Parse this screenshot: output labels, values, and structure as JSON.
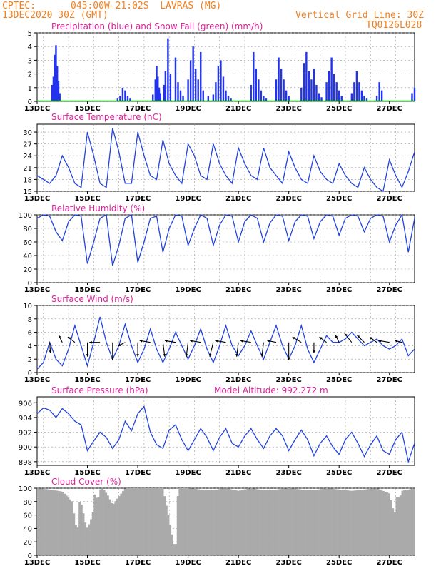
{
  "header": {
    "source": "CPTEC:",
    "location": "045:00W-21:02S  LAVRAS (MG)",
    "run": "13DEC2020 30Z (GMT)",
    "grid_note": "Vertical Grid Line: 30Z",
    "code": "TQ0126L028"
  },
  "colors": {
    "header": "#f08020",
    "title": "#e0209a",
    "line": "#2244dd",
    "precip": "#2233ee",
    "snow": "#00aa00",
    "cloud": "#aaaaaa",
    "wind": "#000000"
  },
  "date_labels": [
    "13DEC",
    "15DEC",
    "17DEC",
    "19DEC",
    "21DEC",
    "23DEC",
    "25DEC",
    "27DEC"
  ],
  "chart_data": [
    {
      "id": "precip",
      "type": "bar",
      "title": "Precipitation (blue) and Snow Fall (green) (mm/h)",
      "ylim": [
        0,
        5
      ],
      "yticks": [
        0,
        1,
        2,
        3,
        4,
        5
      ],
      "x_start": 0,
      "x_end": 15,
      "x_unit": "days since 13DEC2020 00Z (approx.)",
      "series": [
        {
          "name": "Precipitation",
          "x": [
            0.6,
            0.65,
            0.7,
            0.75,
            0.8,
            0.85,
            0.9,
            3.2,
            3.3,
            3.4,
            3.5,
            3.6,
            3.7,
            4.6,
            4.7,
            4.75,
            4.8,
            4.85,
            4.9,
            5.05,
            5.1,
            5.2,
            5.3,
            5.5,
            5.6,
            5.7,
            5.8,
            6.0,
            6.1,
            6.2,
            6.3,
            6.4,
            6.5,
            6.6,
            6.8,
            7.0,
            7.1,
            7.2,
            7.3,
            7.4,
            7.5,
            7.6,
            7.7,
            8.5,
            8.6,
            8.7,
            8.8,
            8.9,
            9.0,
            9.1,
            9.5,
            9.6,
            9.7,
            9.8,
            9.9,
            10.0,
            10.5,
            10.6,
            10.7,
            10.8,
            10.9,
            11.0,
            11.1,
            11.2,
            11.3,
            11.5,
            11.6,
            11.7,
            11.8,
            11.9,
            12.0,
            12.1,
            12.5,
            12.6,
            12.7,
            12.8,
            12.9,
            13.0,
            13.1,
            13.5,
            13.6,
            13.7,
            14.9,
            15.0
          ],
          "values": [
            1.2,
            1.8,
            3.4,
            4.1,
            2.6,
            1.5,
            0.6,
            0.2,
            0.4,
            1.0,
            0.8,
            0.4,
            0.2,
            0.5,
            1.6,
            2.6,
            1.8,
            1.0,
            0.6,
            1.2,
            2.2,
            4.6,
            2.0,
            3.2,
            1.4,
            0.8,
            0.4,
            1.6,
            3.0,
            4.0,
            2.4,
            1.6,
            3.6,
            0.8,
            0.4,
            0.5,
            1.4,
            2.6,
            3.0,
            1.8,
            0.8,
            0.4,
            0.2,
            1.2,
            3.6,
            2.4,
            1.6,
            0.8,
            0.4,
            0.2,
            1.6,
            3.2,
            2.4,
            1.6,
            0.8,
            0.4,
            1.0,
            2.8,
            3.6,
            2.2,
            1.6,
            2.4,
            1.2,
            0.6,
            0.3,
            1.4,
            2.2,
            3.2,
            2.0,
            1.4,
            0.8,
            0.4,
            0.6,
            1.4,
            2.2,
            1.4,
            0.8,
            0.4,
            0.2,
            0.4,
            1.4,
            0.8,
            0.6,
            1.0
          ]
        },
        {
          "name": "Snow Fall",
          "x": [],
          "values": []
        }
      ]
    },
    {
      "id": "temp",
      "type": "line",
      "title": "Surface Temperature (nC)",
      "ylim": [
        15,
        32
      ],
      "yticks": [
        15,
        18,
        21,
        24,
        27,
        30
      ],
      "x_start": 0,
      "x_end": 15,
      "series": [
        {
          "x": [
            0,
            0.25,
            0.5,
            0.75,
            1.0,
            1.25,
            1.5,
            1.75,
            2.0,
            2.25,
            2.5,
            2.75,
            3.0,
            3.25,
            3.5,
            3.75,
            4.0,
            4.25,
            4.5,
            4.75,
            5.0,
            5.25,
            5.5,
            5.75,
            6.0,
            6.25,
            6.5,
            6.75,
            7.0,
            7.25,
            7.5,
            7.75,
            8.0,
            8.25,
            8.5,
            8.75,
            9.0,
            9.25,
            9.5,
            9.75,
            10.0,
            10.25,
            10.5,
            10.75,
            11.0,
            11.25,
            11.5,
            11.75,
            12.0,
            12.25,
            12.5,
            12.75,
            13.0,
            13.25,
            13.5,
            13.75,
            14.0,
            14.25,
            14.5,
            14.75,
            15.0
          ],
          "values": [
            19,
            18,
            17,
            19,
            24,
            21,
            17,
            16,
            30,
            24,
            17,
            16,
            31,
            25,
            17,
            17,
            30,
            24,
            19,
            18,
            28,
            22,
            19,
            17,
            27,
            24,
            19,
            18,
            27,
            22,
            19,
            17,
            26,
            22,
            19,
            18,
            26,
            21,
            19,
            17,
            25,
            21,
            18,
            17,
            24,
            20,
            18,
            17,
            22,
            19,
            17,
            16,
            21,
            18,
            16,
            15,
            23,
            19,
            16,
            20,
            25
          ]
        }
      ]
    },
    {
      "id": "rh",
      "type": "line",
      "title": "Relative Humidity (%)",
      "ylim": [
        0,
        100
      ],
      "yticks": [
        0,
        20,
        40,
        60,
        80,
        100
      ],
      "x_start": 0,
      "x_end": 15,
      "series": [
        {
          "x": [
            0,
            0.25,
            0.5,
            0.75,
            1.0,
            1.25,
            1.5,
            1.75,
            2.0,
            2.25,
            2.5,
            2.75,
            3.0,
            3.25,
            3.5,
            3.75,
            4.0,
            4.25,
            4.5,
            4.75,
            5.0,
            5.25,
            5.5,
            5.75,
            6.0,
            6.25,
            6.5,
            6.75,
            7.0,
            7.25,
            7.5,
            7.75,
            8.0,
            8.25,
            8.5,
            8.75,
            9.0,
            9.25,
            9.5,
            9.75,
            10.0,
            10.25,
            10.5,
            10.75,
            11.0,
            11.25,
            11.5,
            11.75,
            12.0,
            12.25,
            12.5,
            12.75,
            13.0,
            13.25,
            13.5,
            13.75,
            14.0,
            14.25,
            14.5,
            14.75,
            15.0
          ],
          "values": [
            95,
            100,
            98,
            75,
            62,
            90,
            100,
            98,
            28,
            60,
            95,
            100,
            25,
            55,
            95,
            100,
            30,
            60,
            95,
            98,
            45,
            80,
            100,
            98,
            55,
            80,
            100,
            95,
            55,
            85,
            100,
            98,
            60,
            90,
            100,
            95,
            60,
            88,
            100,
            98,
            62,
            90,
            100,
            98,
            65,
            90,
            100,
            98,
            70,
            95,
            100,
            98,
            75,
            95,
            100,
            98,
            60,
            85,
            100,
            45,
            95
          ]
        }
      ]
    },
    {
      "id": "wind",
      "type": "line",
      "title": "Surface Wind (m/s)",
      "ylim": [
        0,
        10
      ],
      "yticks": [
        0,
        2,
        4,
        6,
        8,
        10
      ],
      "x_start": 0,
      "x_end": 15,
      "series": [
        {
          "x": [
            0,
            0.25,
            0.5,
            0.75,
            1.0,
            1.25,
            1.5,
            1.75,
            2.0,
            2.25,
            2.5,
            2.75,
            3.0,
            3.25,
            3.5,
            3.75,
            4.0,
            4.25,
            4.5,
            4.75,
            5.0,
            5.25,
            5.5,
            5.75,
            6.0,
            6.25,
            6.5,
            6.75,
            7.0,
            7.25,
            7.5,
            7.75,
            8.0,
            8.25,
            8.5,
            8.75,
            9.0,
            9.25,
            9.5,
            9.75,
            10.0,
            10.25,
            10.5,
            10.75,
            11.0,
            11.25,
            11.5,
            11.75,
            12.0,
            12.25,
            12.5,
            12.75,
            13.0,
            13.25,
            13.5,
            13.75,
            14.0,
            14.25,
            14.5,
            14.75,
            15.0
          ],
          "values": [
            0.5,
            1.5,
            4.5,
            2.0,
            1.0,
            3.5,
            7.0,
            4.0,
            1.0,
            4.5,
            8.3,
            4.5,
            2.0,
            4.0,
            7.2,
            4.0,
            1.5,
            3.5,
            6.5,
            3.5,
            1.5,
            3.5,
            6.0,
            4.0,
            2.0,
            4.0,
            6.5,
            3.5,
            1.5,
            4.0,
            7.0,
            4.0,
            2.5,
            4.0,
            6.2,
            4.0,
            2.0,
            4.5,
            7.0,
            4.0,
            2.0,
            4.0,
            7.0,
            3.5,
            1.5,
            3.5,
            5.5,
            4.5,
            4.5,
            5.0,
            6.0,
            5.0,
            4.0,
            4.5,
            5.0,
            4.0,
            3.5,
            4.0,
            5.0,
            2.5,
            3.5
          ]
        }
      ],
      "arrows": {
        "x": [
          0.5,
          1.0,
          1.5,
          2.0,
          2.5,
          3.0,
          3.5,
          4.0,
          4.5,
          5.0,
          5.5,
          6.0,
          6.5,
          7.0,
          7.5,
          8.0,
          8.5,
          9.0,
          9.5,
          10.0,
          10.5,
          11.0,
          11.5,
          12.0,
          12.5,
          13.0,
          13.5,
          14.0,
          14.5
        ],
        "u": [
          0.2,
          -1.0,
          -2.0,
          0.0,
          -3.0,
          0.0,
          -2.0,
          0.0,
          -3.0,
          0.5,
          -3.0,
          -0.5,
          -3.0,
          -1.0,
          -3.0,
          -0.5,
          -3.0,
          -0.5,
          -2.5,
          0.0,
          -2.5,
          0.0,
          -2.0,
          -1.0,
          -2.0,
          -2.0,
          -2.0,
          -3.0,
          -2.0
        ],
        "v": [
          -3.0,
          2.0,
          1.5,
          -4.0,
          0.0,
          -5.0,
          -1.0,
          -4.0,
          0.5,
          -4.0,
          0.5,
          -4.0,
          0.5,
          -4.0,
          0.5,
          -4.0,
          0.5,
          -4.0,
          0.5,
          -5.0,
          1.5,
          -3.0,
          1.5,
          2.0,
          2.5,
          2.0,
          1.5,
          0.5,
          0.5
        ]
      }
    },
    {
      "id": "press",
      "type": "line",
      "title": "Surface Pressure (hPa)",
      "annotation": "Model Altitude: 992.272 m",
      "ylim": [
        897.5,
        906.8
      ],
      "yticks": [
        898,
        900,
        902,
        904,
        906
      ],
      "x_start": 0,
      "x_end": 15,
      "series": [
        {
          "x": [
            0,
            0.25,
            0.5,
            0.75,
            1.0,
            1.25,
            1.5,
            1.75,
            2.0,
            2.25,
            2.5,
            2.75,
            3.0,
            3.25,
            3.5,
            3.75,
            4.0,
            4.25,
            4.5,
            4.75,
            5.0,
            5.25,
            5.5,
            5.75,
            6.0,
            6.25,
            6.5,
            6.75,
            7.0,
            7.25,
            7.5,
            7.75,
            8.0,
            8.25,
            8.5,
            8.75,
            9.0,
            9.25,
            9.5,
            9.75,
            10.0,
            10.25,
            10.5,
            10.75,
            11.0,
            11.25,
            11.5,
            11.75,
            12.0,
            12.25,
            12.5,
            12.75,
            13.0,
            13.25,
            13.5,
            13.75,
            14.0,
            14.25,
            14.5,
            14.75,
            15.0
          ],
          "values": [
            904.5,
            905.3,
            905.0,
            904.0,
            905.2,
            904.5,
            903.5,
            903.0,
            899.5,
            900.8,
            902.0,
            901.3,
            899.8,
            901.0,
            903.5,
            902.2,
            904.5,
            905.5,
            902.0,
            900.3,
            899.8,
            902.3,
            903.0,
            901.0,
            899.5,
            901.0,
            902.5,
            901.3,
            899.5,
            901.3,
            902.5,
            900.5,
            900.0,
            901.5,
            902.5,
            901.0,
            899.8,
            901.5,
            902.5,
            901.5,
            899.5,
            901.0,
            902.3,
            901.0,
            898.8,
            900.5,
            901.5,
            900.0,
            899.0,
            901.0,
            902.0,
            900.5,
            898.7,
            900.3,
            901.5,
            899.5,
            899.0,
            901.0,
            902.0,
            898.0,
            900.5
          ]
        }
      ]
    },
    {
      "id": "cloud",
      "type": "bar",
      "title": "Cloud Cover (%)",
      "ylim": [
        0,
        100
      ],
      "yticks": [
        0,
        20,
        40,
        60,
        80,
        100
      ],
      "x_start": 0,
      "x_end": 15,
      "series": [
        {
          "x": [
            0,
            0.5,
            1.0,
            1.4,
            1.5,
            1.6,
            1.7,
            1.8,
            1.9,
            2.0,
            2.2,
            2.3,
            2.4,
            2.5,
            2.6,
            2.8,
            3.0,
            3.5,
            4.0,
            4.5,
            5.0,
            5.5,
            5.6,
            5.7,
            6.0,
            6.5,
            7.0,
            7.5,
            8.0,
            8.5,
            9.0,
            9.5,
            10.0,
            10.5,
            11.0,
            11.5,
            12.0,
            12.5,
            13.0,
            13.5,
            14.0,
            14.2,
            14.3,
            14.4,
            14.5,
            15.0
          ],
          "values": [
            100,
            98,
            95,
            80,
            52,
            35,
            85,
            70,
            50,
            40,
            60,
            95,
            80,
            98,
            100,
            90,
            75,
            100,
            100,
            100,
            100,
            5,
            100,
            100,
            100,
            98,
            97,
            100,
            96,
            100,
            97,
            98,
            100,
            98,
            97,
            100,
            98,
            96,
            98,
            100,
            92,
            60,
            90,
            85,
            96,
            100
          ]
        }
      ]
    }
  ]
}
